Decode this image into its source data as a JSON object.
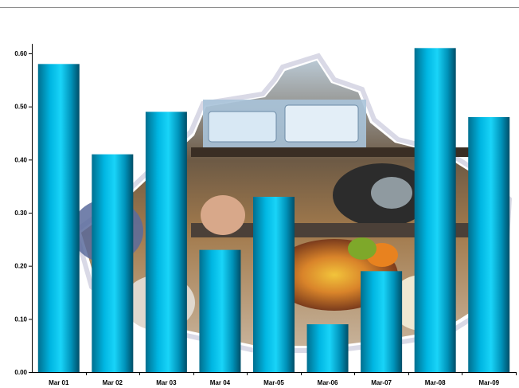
{
  "chart_data": {
    "type": "bar",
    "title": "",
    "xlabel": "",
    "ylabel": "",
    "categories": [
      "Mar 01",
      "Mar 02",
      "Mar 03",
      "Mar 04",
      "Mar-05",
      "Mar-06",
      "Mar-07",
      "Mar-08",
      "Mar-09"
    ],
    "values": [
      0.58,
      0.41,
      0.49,
      0.23,
      0.33,
      0.09,
      0.19,
      0.61,
      0.48
    ],
    "ylim": [
      0,
      0.6
    ],
    "yticks": [
      "0.00",
      "0.10",
      "0.20",
      "0.30",
      "0.40",
      "0.50",
      "0.60"
    ],
    "grid": false,
    "legend": "none",
    "bar_color": "#00b4e0",
    "background_image": "kitchen-still-life-photo"
  }
}
